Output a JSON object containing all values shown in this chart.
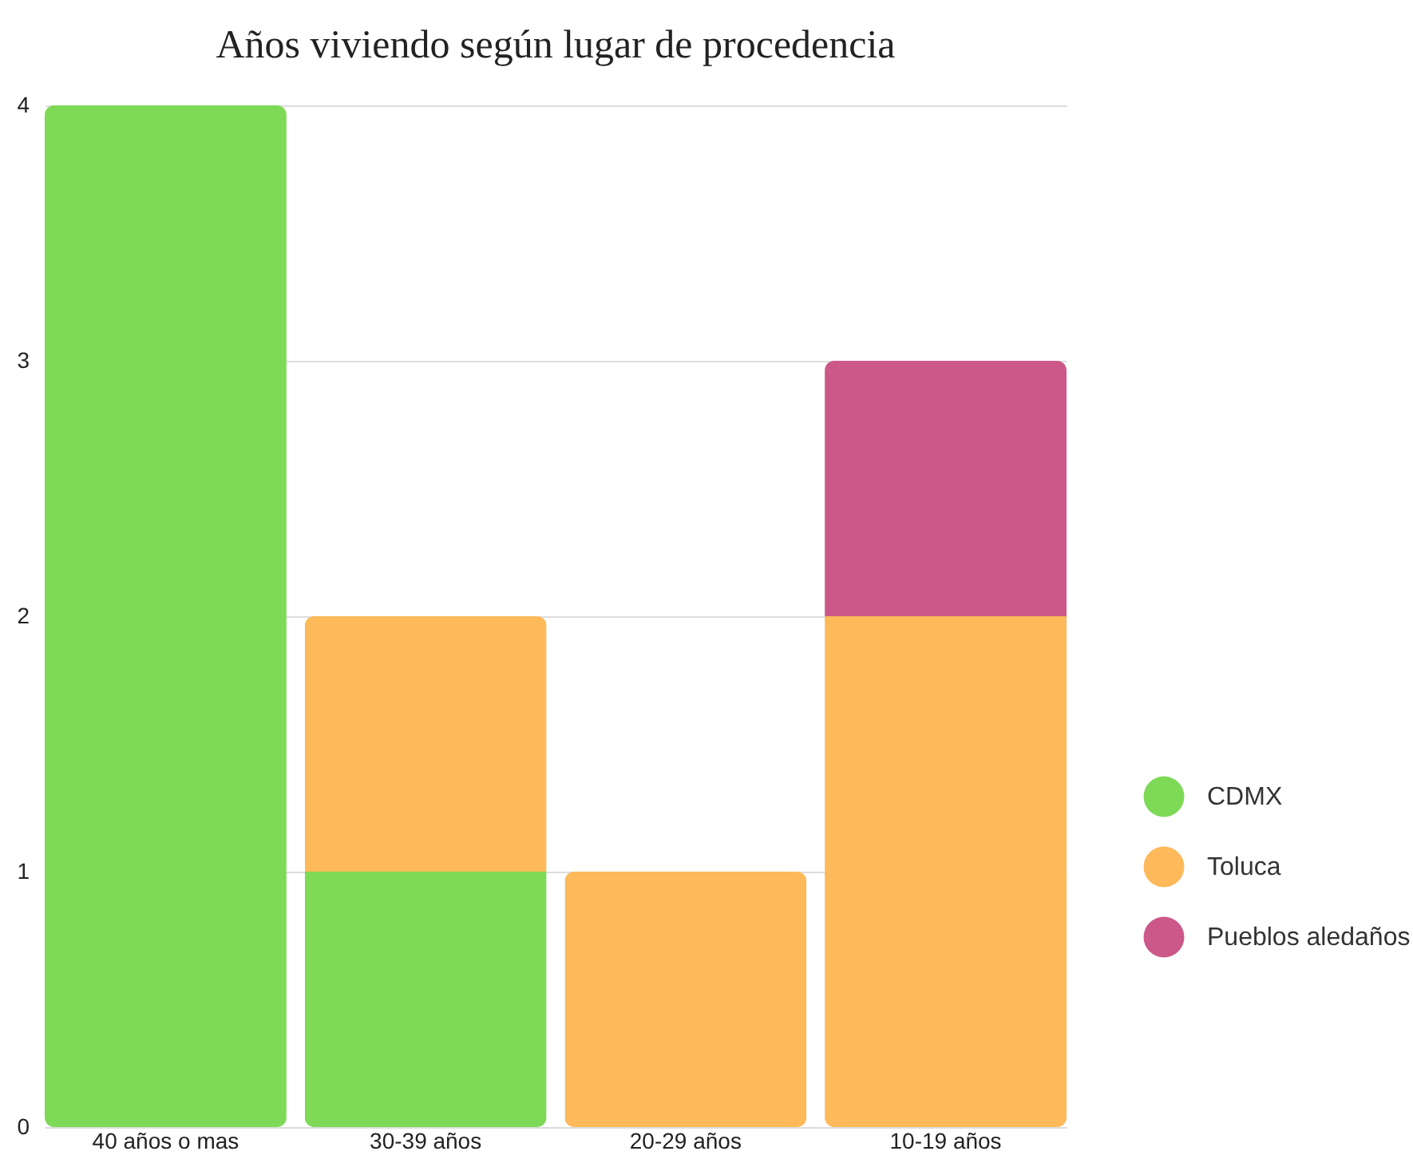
{
  "chart_data": {
    "type": "bar",
    "title": "Años viviendo según lugar de procedencia",
    "categories": [
      "40 años o mas",
      "30-39 años",
      "20-29 años",
      "10-19 años"
    ],
    "series": [
      {
        "name": "CDMX",
        "color": "#7ed957",
        "values": [
          4,
          1,
          null,
          null
        ]
      },
      {
        "name": "Toluca",
        "color": "#fdb95a",
        "values": [
          null,
          1,
          1,
          2
        ]
      },
      {
        "name": "Pueblos aledaños",
        "color": "#cc5889",
        "values": [
          null,
          null,
          null,
          1
        ]
      }
    ],
    "stacked": true,
    "ylim": [
      0,
      4
    ],
    "yticks": [
      0,
      1,
      2,
      3,
      4
    ],
    "grid": "y",
    "legend": "right"
  }
}
